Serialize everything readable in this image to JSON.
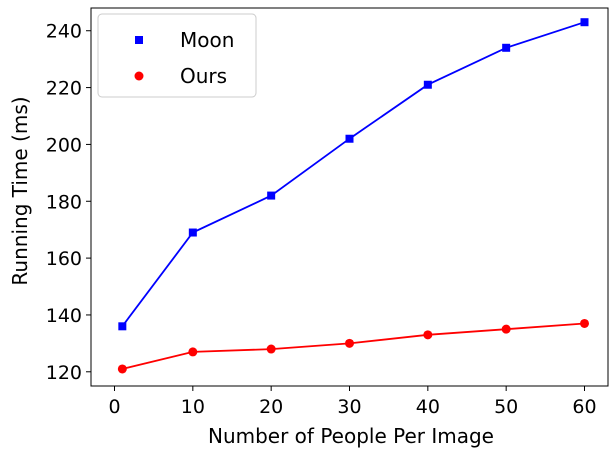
{
  "chart_data": {
    "type": "line",
    "title": "",
    "xlabel": "Number of People Per Image",
    "ylabel": "Running Time (ms)",
    "x": [
      1,
      10,
      20,
      30,
      40,
      50,
      60
    ],
    "xlim": [
      -3,
      63
    ],
    "ylim": [
      115,
      248
    ],
    "xticks": [
      "0",
      "10",
      "20",
      "30",
      "40",
      "50",
      "60"
    ],
    "yticks": [
      "120",
      "140",
      "160",
      "180",
      "200",
      "220",
      "240"
    ],
    "grid": false,
    "legend_position": "top-left",
    "series": [
      {
        "name": "Moon",
        "color": "#0000ff",
        "marker": "square",
        "values": [
          136,
          169,
          182,
          202,
          221,
          234,
          243
        ]
      },
      {
        "name": "Ours",
        "color": "#ff0000",
        "marker": "circle",
        "values": [
          121,
          127,
          128,
          130,
          133,
          135,
          137
        ]
      }
    ]
  }
}
